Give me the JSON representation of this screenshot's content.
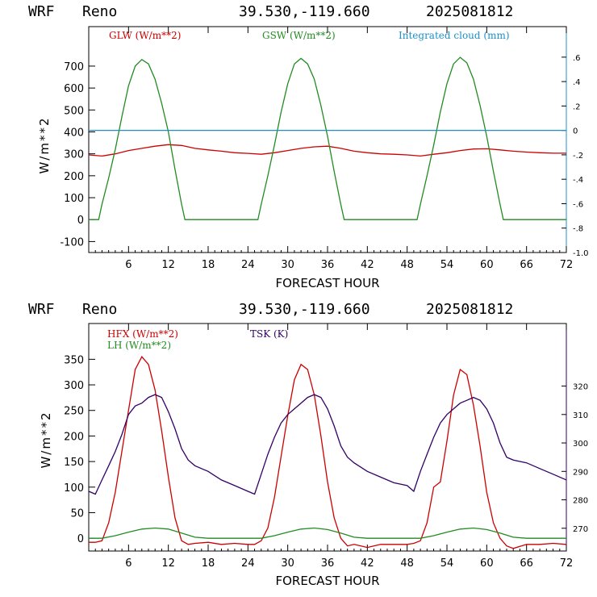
{
  "colors": {
    "red": "#cc0000",
    "green": "#228b22",
    "blue": "#1e90c8",
    "purple": "#330066",
    "black": "#000000"
  },
  "chart_data": [
    {
      "type": "line",
      "header": {
        "model": "WRF",
        "station": "Reno",
        "coords": "39.530,-119.660",
        "init": "2025081812"
      },
      "xlabel": "FORECAST HOUR",
      "ylabel": "W/m**2",
      "xlim": [
        0,
        72
      ],
      "ylim": [
        -150,
        880
      ],
      "xticks": [
        "6",
        "12",
        "18",
        "24",
        "30",
        "36",
        "42",
        "48",
        "54",
        "60",
        "66",
        "72"
      ],
      "yticks": [
        "-100",
        "0",
        "100",
        "200",
        "300",
        "400",
        "500",
        "600",
        "700"
      ],
      "y2lim": [
        -1.0,
        0.85
      ],
      "y2ticks": [
        "-1.0",
        "-.8",
        "-.6",
        "-.4",
        "-.2",
        "0",
        ".2",
        ".4",
        ".6"
      ],
      "legend": [
        "GLW (W/m**2)",
        "GSW (W/m**2)",
        "Integrated cloud (mm)"
      ],
      "series": [
        {
          "name": "GLW (W/m**2)",
          "axis": "left",
          "x": [
            0,
            2,
            4,
            6,
            8,
            10,
            12,
            14,
            16,
            18,
            20,
            22,
            24,
            26,
            28,
            30,
            32,
            34,
            36,
            38,
            40,
            42,
            44,
            46,
            48,
            50,
            52,
            54,
            56,
            58,
            60,
            62,
            64,
            66,
            68,
            70,
            72
          ],
          "y": [
            295,
            290,
            300,
            315,
            325,
            335,
            342,
            338,
            325,
            318,
            312,
            305,
            302,
            298,
            305,
            315,
            325,
            332,
            335,
            325,
            312,
            305,
            300,
            298,
            295,
            290,
            298,
            305,
            315,
            322,
            323,
            318,
            312,
            308,
            305,
            303,
            303
          ]
        },
        {
          "name": "GSW (W/m**2)",
          "axis": "left",
          "x": [
            0,
            1,
            1.5,
            2,
            3,
            4,
            5,
            6,
            7,
            8,
            9,
            10,
            11,
            12,
            13,
            14,
            14.5,
            15,
            20,
            25,
            25.5,
            26,
            27,
            28,
            29,
            30,
            31,
            32,
            33,
            34,
            35,
            36,
            37,
            38,
            38.5,
            39,
            44,
            49,
            49.5,
            50,
            51,
            52,
            53,
            54,
            55,
            56,
            57,
            58,
            59,
            60,
            61,
            62,
            62.5,
            63,
            68,
            72
          ],
          "y": [
            0,
            0,
            0,
            70,
            190,
            320,
            470,
            610,
            700,
            730,
            710,
            640,
            530,
            400,
            230,
            70,
            0,
            0,
            0,
            0,
            0,
            70,
            200,
            340,
            490,
            620,
            710,
            735,
            710,
            640,
            520,
            380,
            220,
            70,
            0,
            0,
            0,
            0,
            0,
            70,
            200,
            340,
            490,
            620,
            710,
            740,
            715,
            640,
            520,
            380,
            220,
            70,
            0,
            0,
            0,
            0
          ]
        },
        {
          "name": "Integrated cloud (mm)",
          "axis": "right",
          "x": [
            0,
            72
          ],
          "y": [
            0,
            0
          ]
        }
      ]
    },
    {
      "type": "line",
      "header": {
        "model": "WRF",
        "station": "Reno",
        "coords": "39.530,-119.660",
        "init": "2025081812"
      },
      "xlabel": "FORECAST HOUR",
      "ylabel": "W/m**2",
      "xlim": [
        0,
        72
      ],
      "ylim": [
        -25,
        420
      ],
      "xticks": [
        "6",
        "12",
        "18",
        "24",
        "30",
        "36",
        "42",
        "48",
        "54",
        "60",
        "66",
        "72"
      ],
      "yticks": [
        "0",
        "50",
        "100",
        "150",
        "200",
        "250",
        "300",
        "350"
      ],
      "y2lim": [
        262,
        342
      ],
      "y2ticks": [
        "270",
        "280",
        "290",
        "300",
        "310",
        "320"
      ],
      "legend": [
        "HFX (W/m**2)",
        "LH  (W/m**2)",
        "TSK (K)"
      ],
      "series": [
        {
          "name": "HFX (W/m**2)",
          "axis": "left",
          "x": [
            0,
            1,
            2,
            3,
            4,
            5,
            6,
            7,
            8,
            9,
            10,
            11,
            12,
            13,
            14,
            15,
            16,
            18,
            20,
            22,
            24,
            25,
            26,
            27,
            28,
            29,
            30,
            31,
            32,
            33,
            34,
            35,
            36,
            37,
            38,
            39,
            40,
            42,
            44,
            46,
            48,
            49,
            50,
            51,
            52,
            53,
            54,
            55,
            56,
            57,
            58,
            59,
            60,
            61,
            62,
            63,
            64,
            66,
            68,
            70,
            72
          ],
          "y": [
            -8,
            -8,
            -5,
            30,
            90,
            170,
            250,
            330,
            355,
            340,
            290,
            210,
            120,
            40,
            -5,
            -12,
            -10,
            -8,
            -12,
            -10,
            -12,
            -12,
            -5,
            20,
            80,
            160,
            240,
            310,
            340,
            330,
            280,
            200,
            110,
            40,
            0,
            -15,
            -12,
            -18,
            -12,
            -12,
            -12,
            -10,
            -5,
            30,
            100,
            110,
            190,
            280,
            330,
            320,
            260,
            180,
            90,
            30,
            0,
            -15,
            -20,
            -12,
            -12,
            -10,
            -12
          ]
        },
        {
          "name": "LH  (W/m**2)",
          "axis": "left",
          "x": [
            0,
            2,
            4,
            6,
            8,
            10,
            12,
            14,
            16,
            18,
            20,
            22,
            24,
            26,
            28,
            30,
            32,
            34,
            36,
            38,
            40,
            42,
            44,
            46,
            48,
            50,
            52,
            54,
            56,
            58,
            60,
            62,
            64,
            66,
            68,
            70,
            72
          ],
          "y": [
            0,
            0,
            5,
            12,
            18,
            20,
            18,
            10,
            2,
            0,
            0,
            0,
            0,
            0,
            5,
            12,
            18,
            20,
            17,
            10,
            2,
            0,
            0,
            0,
            0,
            0,
            5,
            12,
            18,
            20,
            17,
            10,
            2,
            0,
            0,
            0,
            0
          ]
        },
        {
          "name": "TSK (K)",
          "axis": "right",
          "x": [
            0,
            1,
            2,
            3,
            4,
            5,
            6,
            7,
            8,
            9,
            10,
            11,
            12,
            13,
            14,
            15,
            16,
            18,
            20,
            22,
            24,
            25,
            26,
            27,
            28,
            29,
            30,
            31,
            32,
            33,
            34,
            35,
            36,
            37,
            38,
            39,
            40,
            42,
            44,
            46,
            48,
            49,
            50,
            51,
            52,
            53,
            54,
            55,
            56,
            57,
            58,
            59,
            60,
            61,
            62,
            63,
            64,
            66,
            68,
            70,
            72
          ],
          "y": [
            283,
            282,
            287,
            292,
            297,
            303,
            310,
            313,
            314,
            316,
            317,
            316,
            311,
            305,
            298,
            294,
            292,
            290,
            287,
            285,
            283,
            282,
            289,
            296,
            302,
            307,
            310,
            312,
            314,
            316,
            317,
            316,
            312,
            306,
            299,
            295,
            293,
            290,
            288,
            286,
            285,
            283,
            290,
            296,
            302,
            307,
            310,
            312,
            314,
            315,
            316,
            315,
            312,
            307,
            300,
            295,
            294,
            293,
            291,
            289,
            287
          ]
        }
      ]
    }
  ]
}
